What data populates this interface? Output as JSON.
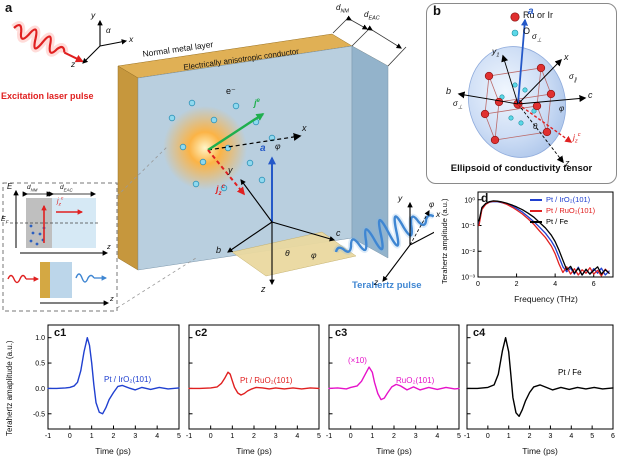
{
  "figure": {
    "panel_a": {
      "label": "a",
      "excitation_label": "Excitation laser pulse",
      "nm_layer": "Normal metal layer",
      "eac_layer": "Electrically anisotropic conductor",
      "d_nm": "d<sub>NM</sub>",
      "d_eac": "d<sub>EAC</sub>",
      "electron": "e⁻",
      "j_e": "j<sup>e</sup>",
      "j_z_c": "j<sub>z</sub><sup>c</sup>",
      "thz_pulse_label": "Terahertz pulse",
      "axes": {
        "x": "x",
        "y": "y",
        "z": "z",
        "a": "a",
        "b": "b",
        "c": "c",
        "alpha": "α",
        "theta": "θ",
        "phi": "φ"
      },
      "inset": {
        "E": "E",
        "E_F": "E<sub>F</sub>",
        "d_nm": "d<sub>NM</sub>",
        "d_eac": "d<sub>EAC</sub>",
        "j_z_c": "j<sub>z</sub><sup>c</sup>",
        "z": "z"
      }
    },
    "panel_b": {
      "label": "b",
      "legend": [
        {
          "label": "Ru or Ir",
          "color": "#e03030"
        },
        {
          "label": "O",
          "color": "#5bd8e8"
        }
      ],
      "caption": "Ellipsoid of conductivity tensor",
      "labels": {
        "a": "a",
        "x": "x",
        "y1": "y<sub>1</sub>",
        "c": "c",
        "b": "b",
        "z": "z",
        "theta": "θ",
        "phi": "φ",
        "sigma_par": "σ<sub>∥</sub>",
        "sigma_perp": "σ<sub>⊥</sub>",
        "j_z_c": "j<sub>z</sub><sup>c</sup>"
      }
    },
    "panel_d": {
      "label": "d",
      "xlabel": "Frequency (THz)",
      "ylabel": "Terahertz amplitude (a.u.)"
    },
    "panel_c": {
      "ylabel": "Terahertz amaplitude (a.u.)",
      "xlabel": "Time (ps)",
      "panels": [
        {
          "label": "c1"
        },
        {
          "label": "c2"
        },
        {
          "label": "c3",
          "annotation": "(×10)"
        },
        {
          "label": "c4"
        }
      ]
    }
  },
  "chart_data": {
    "d_spectra": {
      "type": "line",
      "xlabel": "Frequency (THz)",
      "ylabel": "Terahertz amplitude (a.u.)",
      "xlim": [
        0,
        7
      ],
      "ylim": [
        0.001,
        2
      ],
      "ylog": true,
      "xticks": [
        0,
        2,
        4,
        6
      ],
      "xtick_labels": [
        "0",
        "2",
        "4",
        "6"
      ],
      "yticks": [
        0.001,
        0.01,
        0.1,
        1
      ],
      "ytick_labels": [
        "10⁻³",
        "10⁻²",
        "10⁻¹",
        "10⁰"
      ],
      "legend_position": "top-right",
      "margins": {
        "l": 26,
        "t": 3,
        "r": 3,
        "b": 14
      },
      "series": [
        {
          "name": "Pt / IrO₂(101)",
          "color": "#2040d0",
          "width": 1.3,
          "points": [
            [
              0.05,
              0.12
            ],
            [
              0.2,
              0.45
            ],
            [
              0.4,
              0.68
            ],
            [
              0.6,
              0.8
            ],
            [
              0.8,
              0.85
            ],
            [
              1.0,
              0.84
            ],
            [
              1.2,
              0.78
            ],
            [
              1.5,
              0.68
            ],
            [
              1.8,
              0.55
            ],
            [
              2.0,
              0.46
            ],
            [
              2.3,
              0.33
            ],
            [
              2.6,
              0.22
            ],
            [
              2.9,
              0.14
            ],
            [
              3.2,
              0.085
            ],
            [
              3.5,
              0.05
            ],
            [
              3.8,
              0.025
            ],
            [
              4.0,
              0.014
            ],
            [
              4.2,
              0.006
            ],
            [
              4.4,
              0.0025
            ],
            [
              4.6,
              0.0016
            ],
            [
              4.8,
              0.0022
            ],
            [
              5.0,
              0.0013
            ],
            [
              5.2,
              0.0024
            ],
            [
              5.4,
              0.0012
            ],
            [
              5.6,
              0.0019
            ],
            [
              5.8,
              0.0013
            ],
            [
              6.0,
              0.0021
            ],
            [
              6.2,
              0.0014
            ],
            [
              6.4,
              0.0022
            ],
            [
              6.6,
              0.0012
            ],
            [
              6.8,
              0.0017
            ]
          ]
        },
        {
          "name": "Pt / RuO₂(101)",
          "color": "#e02020",
          "width": 1.3,
          "points": [
            [
              0.05,
              0.1
            ],
            [
              0.2,
              0.42
            ],
            [
              0.4,
              0.66
            ],
            [
              0.6,
              0.82
            ],
            [
              0.8,
              0.88
            ],
            [
              1.0,
              0.86
            ],
            [
              1.2,
              0.8
            ],
            [
              1.5,
              0.66
            ],
            [
              1.8,
              0.5
            ],
            [
              2.0,
              0.4
            ],
            [
              2.3,
              0.28
            ],
            [
              2.6,
              0.18
            ],
            [
              2.9,
              0.11
            ],
            [
              3.2,
              0.06
            ],
            [
              3.5,
              0.034
            ],
            [
              3.8,
              0.016
            ],
            [
              4.0,
              0.008
            ],
            [
              4.2,
              0.0032
            ],
            [
              4.4,
              0.0015
            ],
            [
              4.6,
              0.0025
            ],
            [
              4.8,
              0.0013
            ],
            [
              5.0,
              0.0021
            ],
            [
              5.2,
              0.0012
            ],
            [
              5.4,
              0.0019
            ],
            [
              5.6,
              0.0014
            ],
            [
              5.8,
              0.0023
            ],
            [
              6.0,
              0.0013
            ],
            [
              6.2,
              0.0018
            ],
            [
              6.4,
              0.0011
            ],
            [
              6.6,
              0.002
            ],
            [
              6.8,
              0.0014
            ]
          ]
        },
        {
          "name": "Pt / Fe",
          "color": "#000000",
          "width": 1.3,
          "points": [
            [
              0.05,
              0.15
            ],
            [
              0.2,
              0.5
            ],
            [
              0.4,
              0.72
            ],
            [
              0.6,
              0.85
            ],
            [
              0.8,
              0.9
            ],
            [
              1.0,
              0.88
            ],
            [
              1.2,
              0.83
            ],
            [
              1.5,
              0.73
            ],
            [
              1.8,
              0.61
            ],
            [
              2.0,
              0.53
            ],
            [
              2.3,
              0.41
            ],
            [
              2.6,
              0.3
            ],
            [
              2.9,
              0.21
            ],
            [
              3.2,
              0.13
            ],
            [
              3.5,
              0.08
            ],
            [
              3.8,
              0.042
            ],
            [
              4.0,
              0.024
            ],
            [
              4.2,
              0.011
            ],
            [
              4.4,
              0.0045
            ],
            [
              4.6,
              0.0019
            ],
            [
              4.8,
              0.0026
            ],
            [
              5.0,
              0.0014
            ],
            [
              5.2,
              0.0022
            ],
            [
              5.4,
              0.0012
            ],
            [
              5.6,
              0.002
            ],
            [
              5.8,
              0.0013
            ],
            [
              6.0,
              0.0018
            ],
            [
              6.2,
              0.0025
            ],
            [
              6.4,
              0.0013
            ],
            [
              6.6,
              0.0019
            ],
            [
              6.8,
              0.0014
            ]
          ]
        }
      ]
    },
    "c1": {
      "type": "line",
      "xlabel": "Time (ps)",
      "xlim": [
        -1,
        5
      ],
      "ylim": [
        -0.8,
        1.25
      ],
      "xticks": [
        -1,
        0,
        1,
        2,
        3,
        4,
        5
      ],
      "xtick_labels": [
        "-1",
        "0",
        "1",
        "2",
        "3",
        "4",
        "5"
      ],
      "yticks": [
        -0.5,
        0,
        0.5,
        1
      ],
      "ytick_labels": [
        "-0.5",
        "0.0",
        "0.5",
        "1.0"
      ],
      "margins": {
        "l": 24,
        "t": 3,
        "r": 3,
        "b": 15
      },
      "series": [
        {
          "name": "Pt / IrO₂(101)",
          "color": "#2040d0",
          "width": 1.4,
          "points": [
            [
              -1,
              0
            ],
            [
              -0.6,
              0
            ],
            [
              -0.2,
              0.01
            ],
            [
              0,
              0.02
            ],
            [
              0.2,
              0.05
            ],
            [
              0.35,
              0.12
            ],
            [
              0.5,
              0.35
            ],
            [
              0.65,
              0.72
            ],
            [
              0.8,
              1.0
            ],
            [
              0.9,
              0.85
            ],
            [
              1.0,
              0.5
            ],
            [
              1.1,
              0.08
            ],
            [
              1.2,
              -0.28
            ],
            [
              1.35,
              -0.47
            ],
            [
              1.5,
              -0.5
            ],
            [
              1.65,
              -0.38
            ],
            [
              1.8,
              -0.22
            ],
            [
              2.0,
              -0.08
            ],
            [
              2.2,
              0.04
            ],
            [
              2.4,
              0.06
            ],
            [
              2.7,
              0.01
            ],
            [
              3.0,
              -0.03
            ],
            [
              3.3,
              0.02
            ],
            [
              3.7,
              -0.02
            ],
            [
              4.1,
              0.02
            ],
            [
              4.5,
              -0.01
            ],
            [
              5,
              0.01
            ]
          ]
        }
      ]
    },
    "c2": {
      "type": "line",
      "xlabel": "Time (ps)",
      "xlim": [
        -1,
        5
      ],
      "ylim": [
        -0.8,
        1.25
      ],
      "xticks": [
        -1,
        0,
        1,
        2,
        3,
        4,
        5
      ],
      "xtick_labels": [
        "-1",
        "0",
        "1",
        "2",
        "3",
        "4",
        "5"
      ],
      "yticks": [
        -0.5,
        0,
        0.5,
        1
      ],
      "margins": {
        "l": 3,
        "t": 3,
        "r": 3,
        "b": 15
      },
      "series": [
        {
          "name": "Pt / RuO₂(101)",
          "color": "#e02020",
          "width": 1.4,
          "points": [
            [
              -1,
              0
            ],
            [
              -0.5,
              0
            ],
            [
              0,
              0.01
            ],
            [
              0.3,
              0.03
            ],
            [
              0.5,
              0.1
            ],
            [
              0.65,
              0.2
            ],
            [
              0.8,
              0.32
            ],
            [
              0.9,
              0.28
            ],
            [
              1.0,
              0.15
            ],
            [
              1.1,
              0.02
            ],
            [
              1.25,
              -0.09
            ],
            [
              1.4,
              -0.13
            ],
            [
              1.55,
              -0.1
            ],
            [
              1.7,
              -0.05
            ],
            [
              1.9,
              -0.01
            ],
            [
              2.1,
              0.02
            ],
            [
              2.4,
              0.01
            ],
            [
              2.7,
              -0.01
            ],
            [
              3.0,
              0.01
            ],
            [
              3.4,
              -0.01
            ],
            [
              3.8,
              0.01
            ],
            [
              4.2,
              -0.01
            ],
            [
              4.6,
              0.01
            ],
            [
              5,
              0
            ]
          ]
        }
      ]
    },
    "c3": {
      "type": "line",
      "xlabel": "Time (ps)",
      "xlim": [
        -1,
        5
      ],
      "ylim": [
        -0.8,
        1.25
      ],
      "xticks": [
        -1,
        0,
        1,
        2,
        3,
        4,
        5
      ],
      "xtick_labels": [
        "-1",
        "0",
        "1",
        "2",
        "3",
        "4",
        "5"
      ],
      "yticks": [
        -0.5,
        0,
        0.5,
        1
      ],
      "annotation": "(×10)",
      "margins": {
        "l": 3,
        "t": 3,
        "r": 3,
        "b": 15
      },
      "series": [
        {
          "name": "RuO₂(101)",
          "color": "#e612c9",
          "width": 1.4,
          "points": [
            [
              -1,
              0
            ],
            [
              -0.6,
              0.01
            ],
            [
              -0.2,
              -0.01
            ],
            [
              0,
              0.02
            ],
            [
              0.3,
              0.05
            ],
            [
              0.5,
              0.14
            ],
            [
              0.7,
              0.3
            ],
            [
              0.85,
              0.42
            ],
            [
              1.0,
              0.32
            ],
            [
              1.1,
              0.12
            ],
            [
              1.25,
              -0.1
            ],
            [
              1.4,
              -0.22
            ],
            [
              1.55,
              -0.19
            ],
            [
              1.7,
              -0.09
            ],
            [
              1.9,
              0.03
            ],
            [
              2.1,
              0.08
            ],
            [
              2.3,
              0.05
            ],
            [
              2.6,
              -0.03
            ],
            [
              2.9,
              0.03
            ],
            [
              3.2,
              -0.03
            ],
            [
              3.6,
              0.02
            ],
            [
              4.0,
              -0.02
            ],
            [
              4.4,
              0.02
            ],
            [
              4.8,
              -0.01
            ],
            [
              5,
              0
            ]
          ]
        }
      ]
    },
    "c4": {
      "type": "line",
      "xlabel": "Time (ps)",
      "xlim": [
        -1,
        6
      ],
      "ylim": [
        -0.8,
        1.25
      ],
      "xticks": [
        -1,
        0,
        1,
        2,
        3,
        4,
        5,
        6
      ],
      "xtick_labels": [
        "-1",
        "0",
        "1",
        "2",
        "3",
        "4",
        "5",
        "6"
      ],
      "yticks": [
        -0.5,
        0,
        0.5,
        1
      ],
      "margins": {
        "l": 3,
        "t": 3,
        "r": 3,
        "b": 15
      },
      "series": [
        {
          "name": "Pt / Fe",
          "color": "#000000",
          "width": 1.4,
          "points": [
            [
              -1,
              0
            ],
            [
              -0.5,
              0
            ],
            [
              0,
              0.02
            ],
            [
              0.3,
              0.07
            ],
            [
              0.5,
              0.28
            ],
            [
              0.7,
              0.75
            ],
            [
              0.85,
              1.0
            ],
            [
              1.0,
              0.72
            ],
            [
              1.1,
              0.28
            ],
            [
              1.2,
              -0.18
            ],
            [
              1.35,
              -0.48
            ],
            [
              1.5,
              -0.55
            ],
            [
              1.65,
              -0.42
            ],
            [
              1.8,
              -0.25
            ],
            [
              2.0,
              -0.08
            ],
            [
              2.2,
              0.03
            ],
            [
              2.5,
              0.07
            ],
            [
              2.8,
              0.02
            ],
            [
              3.1,
              -0.03
            ],
            [
              3.5,
              0.02
            ],
            [
              3.9,
              -0.02
            ],
            [
              4.3,
              0.02
            ],
            [
              4.7,
              -0.01
            ],
            [
              5.1,
              0.02
            ],
            [
              5.5,
              -0.01
            ],
            [
              6,
              0.01
            ]
          ]
        }
      ]
    }
  }
}
